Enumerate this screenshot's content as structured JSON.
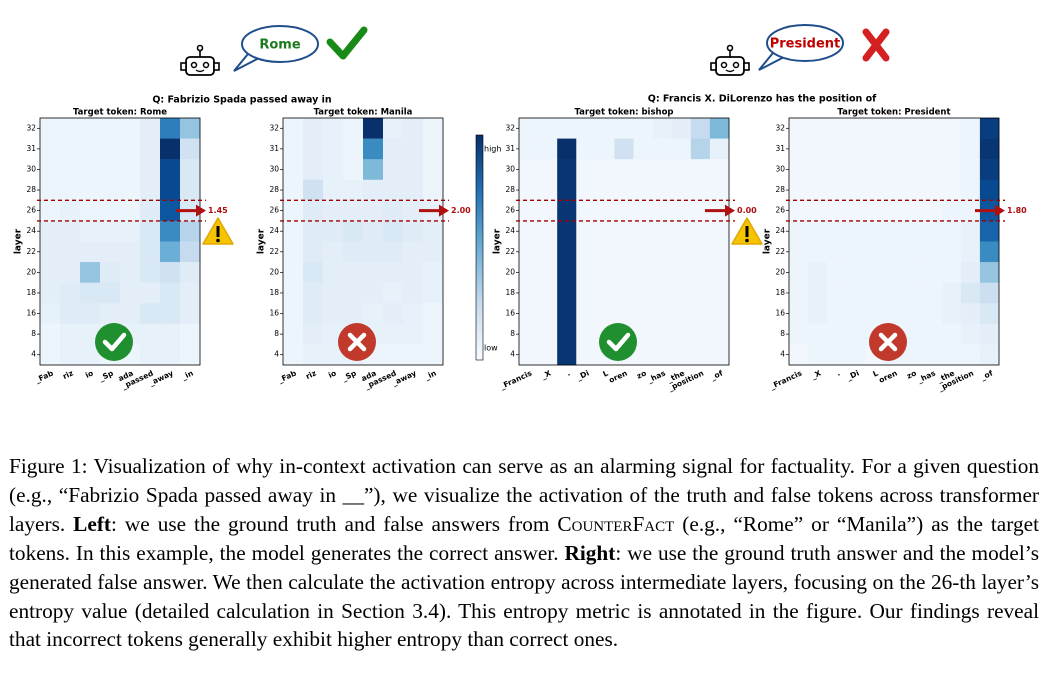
{
  "figure": {
    "bubbles": [
      "Rome",
      "President"
    ],
    "questions": [
      "Q: Fabrizio Spada passed away in",
      "Q: Francis X. DiLorenzo has the position of"
    ],
    "y_label": "layer",
    "rows": [
      32,
      31,
      30,
      28,
      26,
      24,
      22,
      20,
      18,
      16,
      8,
      4
    ],
    "colorbar": {
      "high": "high",
      "low": "low"
    },
    "panels": [
      {
        "target": "Target token:  Rome",
        "tokens": [
          "_Fab",
          "riz",
          "io",
          "_Sp",
          "ada",
          "_passed",
          "_away",
          "_in"
        ],
        "entropy": 1.45,
        "matrix": [
          [
            0.05,
            0.05,
            0.05,
            0.05,
            0.05,
            0.1,
            0.7,
            0.4
          ],
          [
            0.05,
            0.05,
            0.05,
            0.05,
            0.05,
            0.1,
            1.0,
            0.2
          ],
          [
            0.05,
            0.05,
            0.05,
            0.05,
            0.05,
            0.1,
            0.9,
            0.15
          ],
          [
            0.05,
            0.05,
            0.05,
            0.05,
            0.05,
            0.1,
            0.9,
            0.15
          ],
          [
            0.05,
            0.08,
            0.05,
            0.05,
            0.05,
            0.12,
            0.85,
            0.15
          ],
          [
            0.1,
            0.1,
            0.08,
            0.08,
            0.08,
            0.15,
            0.65,
            0.3
          ],
          [
            0.1,
            0.1,
            0.1,
            0.1,
            0.1,
            0.15,
            0.5,
            0.25
          ],
          [
            0.1,
            0.1,
            0.4,
            0.12,
            0.1,
            0.15,
            0.2,
            0.12
          ],
          [
            0.1,
            0.12,
            0.15,
            0.15,
            0.1,
            0.1,
            0.15,
            0.1
          ],
          [
            0.08,
            0.12,
            0.12,
            0.1,
            0.1,
            0.15,
            0.15,
            0.1
          ],
          [
            0.05,
            0.08,
            0.08,
            0.08,
            0.08,
            0.08,
            0.08,
            0.05
          ],
          [
            0.05,
            0.08,
            0.08,
            0.05,
            0.05,
            0.08,
            0.08,
            0.05
          ]
        ]
      },
      {
        "target": "Target token:  Manila",
        "tokens": [
          "_Fab",
          "riz",
          "io",
          "_Sp",
          "ada",
          "_passed",
          "_away",
          "_in"
        ],
        "entropy": {
          "value": 2,
          "label": "2.00"
        },
        "matrix": [
          [
            0.05,
            0.1,
            0.08,
            0.05,
            1.0,
            0.08,
            0.1,
            0.05
          ],
          [
            0.05,
            0.1,
            0.08,
            0.05,
            0.65,
            0.1,
            0.1,
            0.05
          ],
          [
            0.05,
            0.1,
            0.08,
            0.05,
            0.45,
            0.1,
            0.1,
            0.05
          ],
          [
            0.05,
            0.2,
            0.08,
            0.08,
            0.1,
            0.1,
            0.1,
            0.05
          ],
          [
            0.05,
            0.12,
            0.1,
            0.1,
            0.1,
            0.12,
            0.1,
            0.08
          ],
          [
            0.05,
            0.12,
            0.12,
            0.15,
            0.12,
            0.15,
            0.12,
            0.1
          ],
          [
            0.05,
            0.12,
            0.1,
            0.12,
            0.12,
            0.12,
            0.1,
            0.1
          ],
          [
            0.05,
            0.15,
            0.1,
            0.1,
            0.1,
            0.1,
            0.1,
            0.08
          ],
          [
            0.05,
            0.12,
            0.1,
            0.1,
            0.1,
            0.08,
            0.1,
            0.08
          ],
          [
            0.05,
            0.12,
            0.1,
            0.1,
            0.08,
            0.1,
            0.08,
            0.05
          ],
          [
            0.05,
            0.1,
            0.08,
            0.08,
            0.08,
            0.08,
            0.08,
            0.05
          ],
          [
            0.05,
            0.08,
            0.08,
            0.08,
            0.05,
            0.05,
            0.05,
            0.05
          ]
        ]
      },
      {
        "target": "Target token:  bishop",
        "tokens": [
          "_Francis",
          "_X",
          ".",
          "_Di",
          "L",
          "oren",
          "zo",
          "_has",
          "_the",
          "_position",
          "_of"
        ],
        "entropy": {
          "value": 0,
          "label": "0.00"
        },
        "matrix": [
          [
            0.05,
            0.05,
            0.05,
            0.05,
            0.05,
            0.05,
            0.05,
            0.08,
            0.1,
            0.25,
            0.45
          ],
          [
            0.05,
            0.05,
            1.0,
            0.05,
            0.05,
            0.2,
            0.05,
            0.05,
            0.05,
            0.3,
            0.08
          ],
          [
            0.03,
            0.03,
            0.98,
            0.03,
            0.03,
            0.03,
            0.03,
            0.03,
            0.03,
            0.03,
            0.03
          ],
          [
            0.03,
            0.03,
            0.98,
            0.03,
            0.03,
            0.03,
            0.03,
            0.03,
            0.03,
            0.03,
            0.03
          ],
          [
            0.03,
            0.03,
            0.98,
            0.03,
            0.03,
            0.03,
            0.03,
            0.03,
            0.03,
            0.03,
            0.03
          ],
          [
            0.03,
            0.03,
            0.98,
            0.03,
            0.03,
            0.03,
            0.03,
            0.03,
            0.03,
            0.03,
            0.03
          ],
          [
            0.03,
            0.03,
            0.98,
            0.03,
            0.03,
            0.03,
            0.03,
            0.03,
            0.03,
            0.03,
            0.03
          ],
          [
            0.03,
            0.03,
            0.98,
            0.03,
            0.03,
            0.03,
            0.03,
            0.03,
            0.03,
            0.03,
            0.03
          ],
          [
            0.03,
            0.03,
            0.98,
            0.03,
            0.03,
            0.03,
            0.03,
            0.03,
            0.03,
            0.03,
            0.03
          ],
          [
            0.03,
            0.03,
            0.98,
            0.03,
            0.03,
            0.03,
            0.03,
            0.03,
            0.03,
            0.03,
            0.03
          ],
          [
            0.03,
            0.03,
            0.98,
            0.03,
            0.03,
            0.03,
            0.03,
            0.03,
            0.03,
            0.03,
            0.03
          ],
          [
            0.03,
            0.03,
            0.98,
            0.03,
            0.03,
            0.03,
            0.03,
            0.03,
            0.03,
            0.03,
            0.03
          ]
        ]
      },
      {
        "target": "Target token:  President",
        "tokens": [
          "_Francis",
          "_X",
          ".",
          "_Di",
          "L",
          "oren",
          "zo",
          "_has",
          "_the",
          "_position",
          "_of"
        ],
        "entropy": {
          "value": 1.8,
          "label": "1.80"
        },
        "matrix": [
          [
            0.03,
            0.03,
            0.03,
            0.03,
            0.03,
            0.03,
            0.03,
            0.03,
            0.03,
            0.05,
            0.95
          ],
          [
            0.03,
            0.03,
            0.03,
            0.03,
            0.03,
            0.03,
            0.03,
            0.03,
            0.03,
            0.05,
            0.98
          ],
          [
            0.03,
            0.03,
            0.03,
            0.03,
            0.03,
            0.03,
            0.03,
            0.03,
            0.03,
            0.05,
            0.95
          ],
          [
            0.03,
            0.03,
            0.03,
            0.03,
            0.03,
            0.03,
            0.03,
            0.03,
            0.03,
            0.05,
            0.9
          ],
          [
            0.03,
            0.03,
            0.03,
            0.03,
            0.03,
            0.03,
            0.03,
            0.03,
            0.05,
            0.05,
            0.85
          ],
          [
            0.05,
            0.05,
            0.05,
            0.05,
            0.05,
            0.05,
            0.05,
            0.05,
            0.05,
            0.08,
            0.8
          ],
          [
            0.05,
            0.05,
            0.05,
            0.05,
            0.05,
            0.05,
            0.05,
            0.05,
            0.05,
            0.08,
            0.65
          ],
          [
            0.05,
            0.08,
            0.05,
            0.05,
            0.05,
            0.05,
            0.05,
            0.05,
            0.05,
            0.1,
            0.4
          ],
          [
            0.05,
            0.08,
            0.05,
            0.05,
            0.05,
            0.05,
            0.05,
            0.05,
            0.08,
            0.15,
            0.22
          ],
          [
            0.05,
            0.08,
            0.05,
            0.05,
            0.05,
            0.05,
            0.05,
            0.05,
            0.08,
            0.1,
            0.15
          ],
          [
            0.05,
            0.05,
            0.05,
            0.05,
            0.05,
            0.05,
            0.05,
            0.05,
            0.05,
            0.08,
            0.1
          ],
          [
            0.03,
            0.05,
            0.05,
            0.05,
            0.03,
            0.05,
            0.05,
            0.05,
            0.05,
            0.05,
            0.08
          ]
        ]
      }
    ]
  },
  "caption": [
    {
      "text": "Figure 1: Visualization of why in-context activation can serve as an alarming signal for factuality. For a given question (e.g., “Fabrizio Spada passed away in __”), we visualize the activation of the truth and false tokens across transformer layers. "
    },
    {
      "text": "Left",
      "bold": true
    },
    {
      "text": ": we use the ground truth and false answers from "
    },
    {
      "text": "CounterFact",
      "smallcaps": true
    },
    {
      "text": " (e.g., “Rome” or “Manila”) as the target tokens. In this example, the model generates the correct answer. "
    },
    {
      "text": "Right",
      "bold": true
    },
    {
      "text": ": we use the ground truth answer and the model’s generated false answer. We then calculate the activation entropy across intermediate layers, focusing on the 26-th layer’s entropy value (detailed calculation in Section 3.4). This entropy metric is annotated in the figure. Our findings reveal that incorrect tokens generally exhibit higher entropy than correct ones."
    }
  ]
}
